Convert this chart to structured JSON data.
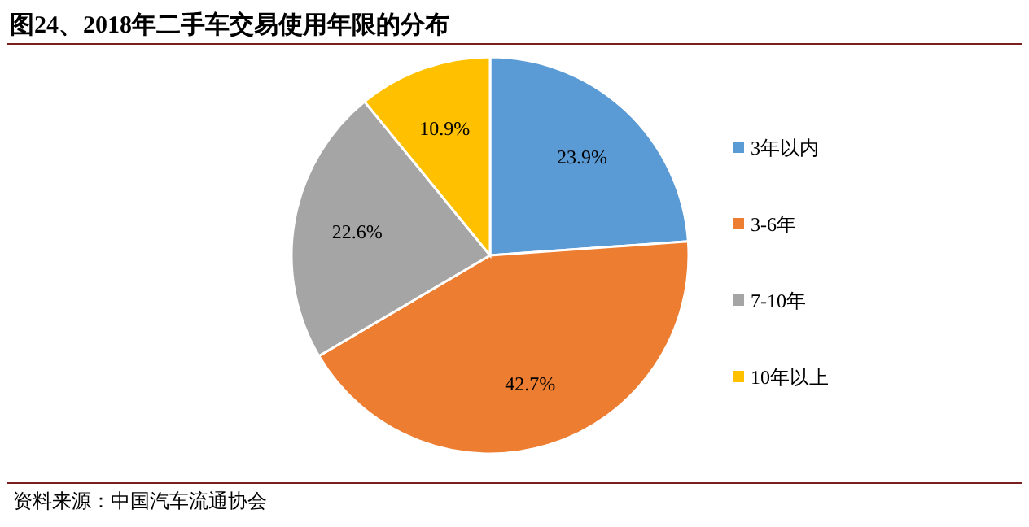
{
  "chart_data": {
    "type": "pie",
    "title": "图24、2018年二手车交易使用年限的分布",
    "categories": [
      "3年以内",
      "3-6年",
      "7-10年",
      "10年以上"
    ],
    "values": [
      23.9,
      42.7,
      22.6,
      10.9
    ],
    "colors": [
      "#5b9bd5",
      "#ed7d31",
      "#a5a5a5",
      "#ffc000"
    ],
    "value_labels": [
      "23.9%",
      "42.7%",
      "22.6%",
      "10.9%"
    ],
    "legend": "right",
    "annotations": [
      "资料来源：中国汽车流通协会"
    ]
  }
}
